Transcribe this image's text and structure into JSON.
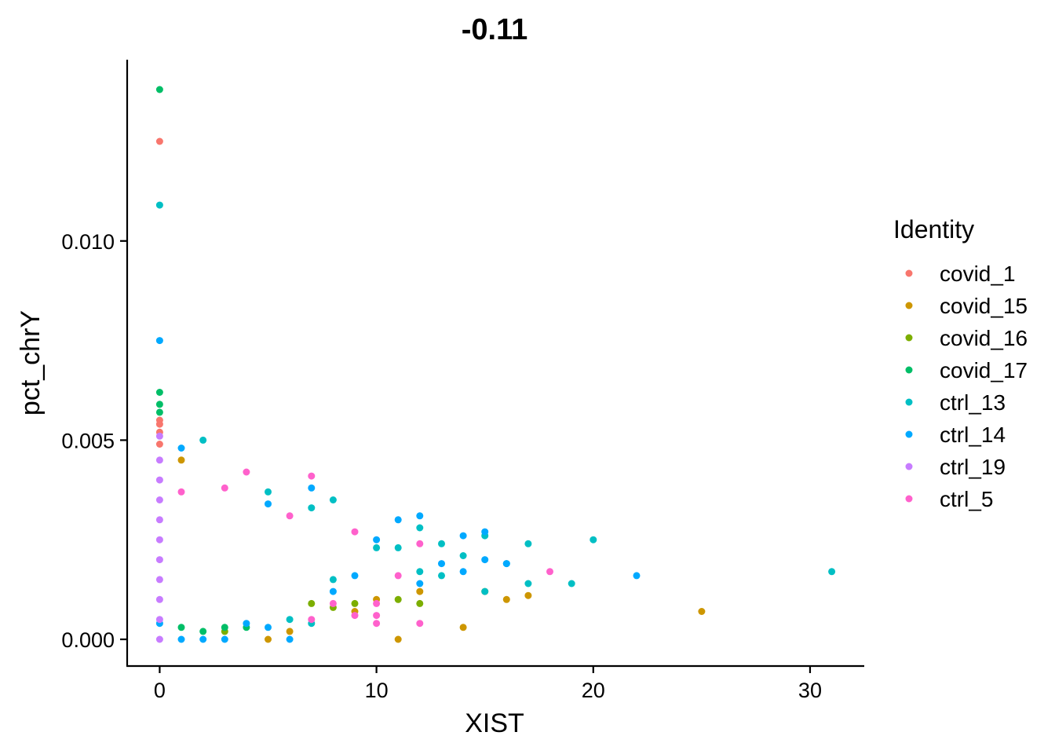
{
  "chart_data": {
    "type": "scatter",
    "title": "-0.11",
    "xlabel": "XIST",
    "ylabel": "pct_chrY",
    "xlim": [
      -1.5,
      32.5
    ],
    "ylim": [
      -0.00067,
      0.01455
    ],
    "x_ticks": [
      0,
      10,
      20,
      30
    ],
    "x_tick_labels": [
      "0",
      "10",
      "20",
      "30"
    ],
    "y_ticks": [
      0.0,
      0.005,
      0.01
    ],
    "y_tick_labels": [
      "0.000",
      "0.005",
      "0.010"
    ],
    "grid": false,
    "legend": {
      "title": "Identity",
      "placement": "right",
      "entries": [
        {
          "label": "covid_1",
          "color": "#F8766D"
        },
        {
          "label": "covid_15",
          "color": "#CD9600"
        },
        {
          "label": "covid_16",
          "color": "#7CAE00"
        },
        {
          "label": "covid_17",
          "color": "#00BE67"
        },
        {
          "label": "ctrl_13",
          "color": "#00BFC4"
        },
        {
          "label": "ctrl_14",
          "color": "#00A9FF"
        },
        {
          "label": "ctrl_19",
          "color": "#C77CFF"
        },
        {
          "label": "ctrl_5",
          "color": "#FF61CC"
        }
      ]
    },
    "series": [
      {
        "name": "covid_1",
        "color": "#F8766D",
        "points": [
          [
            0,
            0.0125
          ],
          [
            0,
            0.0055
          ],
          [
            0,
            0.0054
          ],
          [
            0,
            0.0052
          ],
          [
            0,
            0.0049
          ]
        ]
      },
      {
        "name": "covid_15",
        "color": "#CD9600",
        "points": [
          [
            1,
            0.0045
          ],
          [
            5,
            0.0
          ],
          [
            6,
            0.0002
          ],
          [
            11,
            0.0
          ],
          [
            12,
            0.0012
          ],
          [
            14,
            0.0003
          ],
          [
            15,
            0.0012
          ],
          [
            16,
            0.001
          ],
          [
            17,
            0.0011
          ],
          [
            25,
            0.0007
          ],
          [
            9,
            0.0007
          ],
          [
            10,
            0.001
          ]
        ]
      },
      {
        "name": "covid_16",
        "color": "#7CAE00",
        "points": [
          [
            8,
            0.0008
          ],
          [
            9,
            0.0009
          ],
          [
            11,
            0.001
          ],
          [
            12,
            0.0009
          ],
          [
            3,
            0.0002
          ],
          [
            7,
            0.0009
          ]
        ]
      },
      {
        "name": "covid_17",
        "color": "#00BE67",
        "points": [
          [
            0,
            0.0138
          ],
          [
            0,
            0.0062
          ],
          [
            0,
            0.0059
          ],
          [
            0,
            0.0057
          ],
          [
            2,
            0.0002
          ],
          [
            3,
            0.0003
          ],
          [
            4,
            0.0003
          ],
          [
            1,
            0.0003
          ]
        ]
      },
      {
        "name": "ctrl_13",
        "color": "#00BFC4",
        "points": [
          [
            0,
            0.0109
          ],
          [
            2,
            0.005
          ],
          [
            5,
            0.0037
          ],
          [
            8,
            0.0035
          ],
          [
            7,
            0.0033
          ],
          [
            12,
            0.0028
          ],
          [
            13,
            0.0024
          ],
          [
            17,
            0.0024
          ],
          [
            20,
            0.0025
          ],
          [
            15,
            0.0026
          ],
          [
            17,
            0.0014
          ],
          [
            19,
            0.0014
          ],
          [
            31,
            0.0017
          ],
          [
            14,
            0.0021
          ],
          [
            16,
            0.0019
          ],
          [
            15,
            0.0012
          ],
          [
            10,
            0.0023
          ],
          [
            11,
            0.0023
          ],
          [
            12,
            0.0017
          ],
          [
            13,
            0.0016
          ],
          [
            7,
            0.0004
          ],
          [
            6,
            0.0005
          ],
          [
            8,
            0.0015
          ]
        ]
      },
      {
        "name": "ctrl_14",
        "color": "#00A9FF",
        "points": [
          [
            0,
            0.0075
          ],
          [
            1,
            0.0048
          ],
          [
            1,
            0.0
          ],
          [
            2,
            0.0
          ],
          [
            3,
            0.0
          ],
          [
            6,
            0.0
          ],
          [
            4,
            0.0004
          ],
          [
            5,
            0.0003
          ],
          [
            11,
            0.003
          ],
          [
            12,
            0.0031
          ],
          [
            14,
            0.0026
          ],
          [
            16,
            0.0019
          ],
          [
            22,
            0.0016
          ],
          [
            15,
            0.0027
          ],
          [
            13,
            0.0019
          ],
          [
            14,
            0.0017
          ],
          [
            7,
            0.0038
          ],
          [
            5,
            0.0034
          ],
          [
            10,
            0.0025
          ],
          [
            15,
            0.002
          ],
          [
            12,
            0.0014
          ],
          [
            9,
            0.0016
          ],
          [
            8,
            0.0012
          ],
          [
            0,
            0.0004
          ]
        ]
      },
      {
        "name": "ctrl_19",
        "color": "#C77CFF",
        "points": [
          [
            0,
            0.0051
          ],
          [
            0,
            0.0045
          ],
          [
            0,
            0.004
          ],
          [
            0,
            0.0035
          ],
          [
            0,
            0.003
          ],
          [
            0,
            0.0025
          ],
          [
            0,
            0.002
          ],
          [
            0,
            0.0015
          ],
          [
            0,
            0.001
          ],
          [
            0,
            0.0005
          ],
          [
            0,
            0.0
          ]
        ]
      },
      {
        "name": "ctrl_5",
        "color": "#FF61CC",
        "points": [
          [
            4,
            0.0042
          ],
          [
            7,
            0.0041
          ],
          [
            18,
            0.0017
          ],
          [
            3,
            0.0038
          ],
          [
            1,
            0.0037
          ],
          [
            6,
            0.0031
          ],
          [
            9,
            0.0027
          ],
          [
            10,
            0.0009
          ],
          [
            11,
            0.0016
          ],
          [
            12,
            0.0024
          ],
          [
            12,
            0.0004
          ],
          [
            7,
            0.0005
          ],
          [
            10,
            0.0006
          ],
          [
            9,
            0.0006
          ],
          [
            10,
            0.0004
          ],
          [
            8,
            0.0009
          ]
        ]
      }
    ]
  }
}
